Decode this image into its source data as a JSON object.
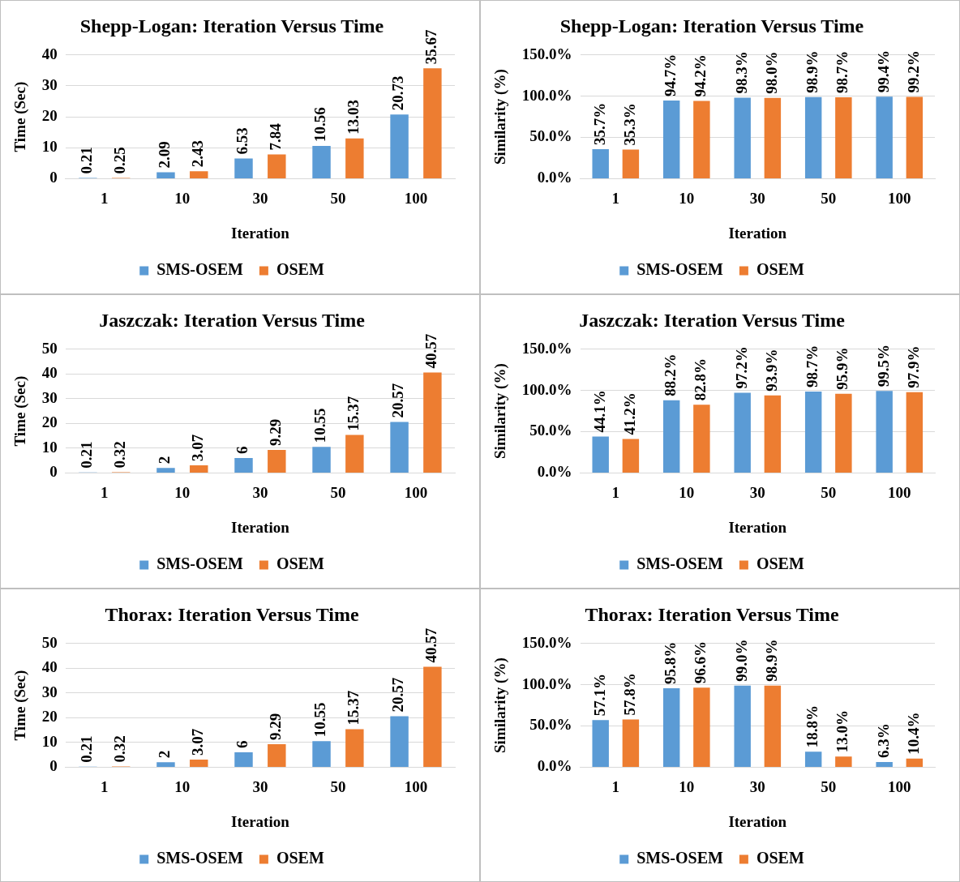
{
  "chart_data": [
    {
      "type": "bar",
      "title": "Shepp-Logan: Iteration Versus Time",
      "xlabel": "Iteration",
      "ylabel": "Time (Sec)",
      "categories": [
        "1",
        "10",
        "30",
        "50",
        "100"
      ],
      "legend": "bottom",
      "grid": "y",
      "data_labels": true,
      "ylim": [
        0,
        40
      ],
      "yticks": [
        0,
        10,
        20,
        30,
        40
      ],
      "series": [
        {
          "name": "SMS-OSEM",
          "color": "#5b9bd5",
          "values": [
            0.21,
            2.09,
            6.53,
            10.56,
            20.73
          ]
        },
        {
          "name": "OSEM",
          "color": "#ed7d31",
          "values": [
            0.25,
            2.43,
            7.84,
            13.03,
            35.67
          ]
        }
      ]
    },
    {
      "type": "bar",
      "title": "Shepp-Logan: Iteration Versus Time",
      "xlabel": "Iteration",
      "ylabel": "Similarity (%)",
      "categories": [
        "1",
        "10",
        "30",
        "50",
        "100"
      ],
      "legend": "bottom",
      "grid": "y",
      "ylim": [
        0,
        150
      ],
      "yticks": [
        {
          "value": 0,
          "label": "0.0%"
        },
        {
          "value": 50,
          "label": "50.0%"
        },
        {
          "value": 100,
          "label": "100.0%"
        },
        {
          "value": 150,
          "label": "150.0%"
        }
      ],
      "series": [
        {
          "name": "SMS-OSEM",
          "color": "#5b9bd5",
          "values": [
            35.7,
            94.7,
            98.3,
            98.9,
            99.4
          ],
          "value_labels": [
            "35.7%",
            "94.7%",
            "98.3%",
            "98.9%",
            "99.4%"
          ]
        },
        {
          "name": "OSEM",
          "color": "#ed7d31",
          "values": [
            35.3,
            94.2,
            98.0,
            98.7,
            99.2
          ],
          "value_labels": [
            "35.3%",
            "94.2%",
            "98.0%",
            "98.7%",
            "99.2%"
          ]
        }
      ]
    },
    {
      "type": "bar",
      "title": "Jaszczak: Iteration Versus Time",
      "xlabel": "Iteration",
      "ylabel": "Time (Sec)",
      "categories": [
        "1",
        "10",
        "30",
        "50",
        "100"
      ],
      "legend": "bottom",
      "grid": "y",
      "data_labels": true,
      "ylim": [
        0,
        50
      ],
      "yticks": [
        0,
        10,
        20,
        30,
        40,
        50
      ],
      "series": [
        {
          "name": "SMS-OSEM",
          "color": "#5b9bd5",
          "values": [
            0.21,
            2,
            6,
            10.55,
            20.57
          ]
        },
        {
          "name": "OSEM",
          "color": "#ed7d31",
          "values": [
            0.32,
            3.07,
            9.29,
            15.37,
            40.57
          ]
        }
      ]
    },
    {
      "type": "bar",
      "title": "Jaszczak: Iteration Versus Time",
      "xlabel": "Iteration",
      "ylabel": "Similarity (%)",
      "categories": [
        "1",
        "10",
        "30",
        "50",
        "100"
      ],
      "legend": "bottom",
      "grid": "y",
      "ylim": [
        0,
        150
      ],
      "yticks": [
        {
          "value": 0,
          "label": "0.0%"
        },
        {
          "value": 50,
          "label": "50.0%"
        },
        {
          "value": 100,
          "label": "100.0%"
        },
        {
          "value": 150,
          "label": "150.0%"
        }
      ],
      "series": [
        {
          "name": "SMS-OSEM",
          "color": "#5b9bd5",
          "values": [
            44.1,
            88.2,
            97.2,
            98.7,
            99.5
          ],
          "value_labels": [
            "44.1%",
            "88.2%",
            "97.2%",
            "98.7%",
            "99.5%"
          ]
        },
        {
          "name": "OSEM",
          "color": "#ed7d31",
          "values": [
            41.2,
            82.8,
            93.9,
            95.9,
            97.9
          ],
          "value_labels": [
            "41.2%",
            "82.8%",
            "93.9%",
            "95.9%",
            "97.9%"
          ]
        }
      ]
    },
    {
      "type": "bar",
      "title": "Thorax: Iteration Versus Time",
      "xlabel": "Iteration",
      "ylabel": "Time (Sec)",
      "categories": [
        "1",
        "10",
        "30",
        "50",
        "100"
      ],
      "legend": "bottom",
      "grid": "y",
      "data_labels": true,
      "ylim": [
        0,
        50
      ],
      "yticks": [
        0,
        10,
        20,
        30,
        40,
        50
      ],
      "series": [
        {
          "name": "SMS-OSEM",
          "color": "#5b9bd5",
          "values": [
            0.21,
            2,
            6,
            10.55,
            20.57
          ]
        },
        {
          "name": "OSEM",
          "color": "#ed7d31",
          "values": [
            0.32,
            3.07,
            9.29,
            15.37,
            40.57
          ]
        }
      ]
    },
    {
      "type": "bar",
      "title": "Thorax: Iteration Versus Time",
      "xlabel": "Iteration",
      "ylabel": "Similarity (%)",
      "categories": [
        "1",
        "10",
        "30",
        "50",
        "100"
      ],
      "legend": "bottom",
      "grid": "y",
      "ylim": [
        0,
        150
      ],
      "yticks": [
        {
          "value": 0,
          "label": "0.0%"
        },
        {
          "value": 50,
          "label": "50.0%"
        },
        {
          "value": 100,
          "label": "100.0%"
        },
        {
          "value": 150,
          "label": "150.0%"
        }
      ],
      "series": [
        {
          "name": "SMS-OSEM",
          "color": "#5b9bd5",
          "values": [
            57.1,
            95.8,
            99.0,
            18.8,
            6.3
          ],
          "value_labels": [
            "57.1%",
            "95.8%",
            "99.0%",
            "18.8%",
            "6.3%"
          ]
        },
        {
          "name": "OSEM",
          "color": "#ed7d31",
          "values": [
            57.8,
            96.6,
            98.9,
            13.0,
            10.4
          ],
          "value_labels": [
            "57.8%",
            "96.6%",
            "98.9%",
            "13.0%",
            "10.4%"
          ]
        }
      ]
    }
  ]
}
